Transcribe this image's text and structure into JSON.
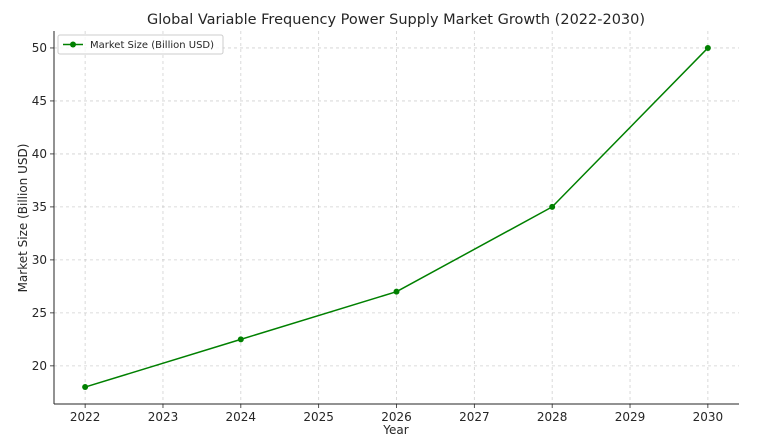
{
  "chart_data": {
    "type": "line",
    "title": "Global Variable Frequency Power Supply Market Growth (2022-2030)",
    "xlabel": "Year",
    "ylabel": "Market Size (Billion USD)",
    "x": [
      2022,
      2024,
      2026,
      2028,
      2030
    ],
    "x_ticks": [
      "2022",
      "2023",
      "2024",
      "2025",
      "2026",
      "2027",
      "2028",
      "2029",
      "2030"
    ],
    "y_ticks": [
      "20",
      "25",
      "30",
      "35",
      "40",
      "45",
      "50"
    ],
    "xlim": [
      2021.6,
      2030.4
    ],
    "ylim": [
      16.4,
      51.6
    ],
    "grid": true,
    "legend_position": "top-left",
    "series": [
      {
        "name": "Market Size (Billion USD)",
        "color": "#008000",
        "marker": "circle",
        "values": [
          18,
          22.5,
          27,
          35,
          50
        ]
      }
    ]
  }
}
